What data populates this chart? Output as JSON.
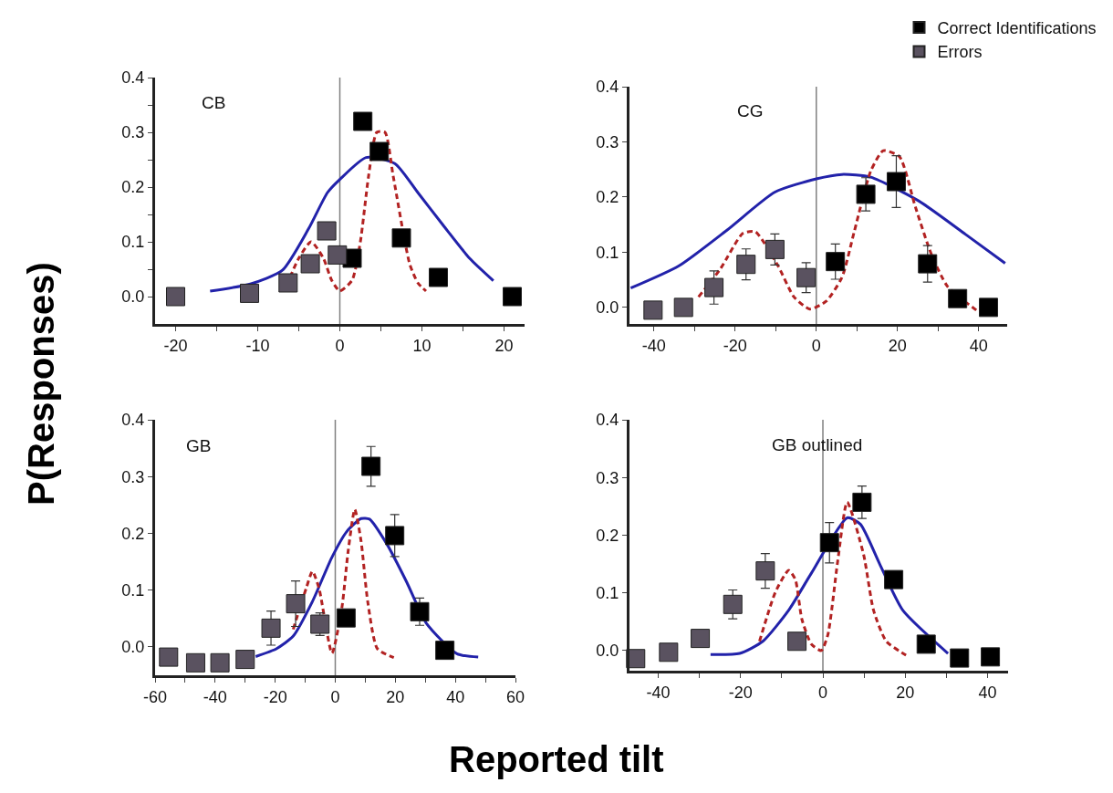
{
  "chart_data": [
    {
      "type": "scatter",
      "title": "CB",
      "ylabel": "P(Responses)",
      "xlim": [
        -22.5,
        22.5
      ],
      "ylim": [
        -0.05,
        0.4
      ],
      "xticks": [
        -20,
        {
          "value": -15,
          "label": null
        },
        -10,
        {
          "value": -5,
          "label": null
        },
        0,
        {
          "value": 5,
          "label": null
        },
        10,
        {
          "value": 15,
          "label": null
        },
        20
      ],
      "yticks": [
        {
          "value": 0,
          "label": "0.0"
        },
        {
          "value": 0.05,
          "label": null
        },
        0.1,
        {
          "value": 0.15,
          "label": null
        },
        0.2,
        {
          "value": 0.25,
          "label": null
        },
        0.3,
        {
          "value": 0.35,
          "label": null
        },
        0.4
      ],
      "marker": "square",
      "ref_lines": [
        {
          "axis": "x",
          "value": 0,
          "color": "#808080"
        }
      ],
      "series": [
        {
          "type": "line",
          "color": "#2222aa",
          "line_style": "solid",
          "marker": "none",
          "x": [
            -15.8,
            -10.9,
            -7,
            -3.8,
            -1.5,
            0,
            3.2,
            6.7,
            9.5,
            12.6,
            15.8,
            18.7
          ],
          "values": [
            0.01,
            0.023,
            0.048,
            0.124,
            0.19,
            0.214,
            0.254,
            0.243,
            0.19,
            0.13,
            0.07,
            0.029
          ]
        },
        {
          "type": "line",
          "color": "#b22222",
          "line_style": "dashed",
          "marker": "none",
          "x": [
            -6.5,
            -5,
            -3.5,
            -2,
            -1,
            0,
            1.5,
            2.5,
            3.5,
            4.5,
            5.5,
            6.5,
            8.5,
            9.5,
            10.5
          ],
          "values": [
            0.02,
            0.07,
            0.1,
            0.07,
            0.03,
            0.01,
            0.03,
            0.1,
            0.22,
            0.3,
            0.3,
            0.22,
            0.06,
            0.025,
            0.01
          ]
        },
        {
          "color": "#000000",
          "x": [
            1.5,
            2.8,
            4.8,
            7.5,
            12,
            21
          ],
          "values": [
            0.07,
            0.32,
            0.265,
            0.107,
            0.035,
            0.0
          ]
        },
        {
          "color": "#5a5260",
          "x": [
            -20,
            -11,
            -6.3,
            -3.6,
            -1.6,
            -0.3
          ],
          "values": [
            0.0,
            0.006,
            0.025,
            0.06,
            0.12,
            0.076
          ]
        }
      ]
    },
    {
      "type": "scatter",
      "title": "CG",
      "xlim": [
        -46,
        47
      ],
      "ylim": [
        -0.03,
        0.4
      ],
      "legend": "top right",
      "xticks": [
        -40,
        {
          "value": -30,
          "label": null
        },
        -20,
        {
          "value": -10,
          "label": null
        },
        0,
        {
          "value": 10,
          "label": null
        },
        20,
        {
          "value": 30,
          "label": null
        },
        40
      ],
      "yticks": [
        {
          "value": 0,
          "label": "0.0"
        },
        0.1,
        0.2,
        0.3,
        0.4
      ],
      "marker": "square",
      "ref_lines": [
        {
          "axis": "x",
          "value": 0,
          "color": "#808080"
        }
      ],
      "series": [
        {
          "type": "line",
          "color": "#2222aa",
          "line_style": "solid",
          "marker": "none",
          "x": [
            -45.7,
            -33.9,
            -22,
            -10.2,
            0,
            6.3,
            13.4,
            25.2,
            37,
            46.5
          ],
          "values": [
            0.035,
            0.075,
            0.14,
            0.209,
            0.233,
            0.241,
            0.236,
            0.193,
            0.131,
            0.08
          ]
        },
        {
          "type": "line",
          "color": "#b22222",
          "line_style": "dashed",
          "marker": "none",
          "x": [
            -29,
            -23.6,
            -18.1,
            -15,
            -9.4,
            -5.5,
            -1.6,
            2.4,
            6.3,
            9.4,
            13.4,
            16.5,
            20.5,
            24.4,
            28.3,
            32.3,
            39.4
          ],
          "values": [
            0.019,
            0.07,
            0.134,
            0.137,
            0.075,
            0.019,
            -0.003,
            0.011,
            0.054,
            0.139,
            0.247,
            0.284,
            0.273,
            0.182,
            0.097,
            0.038,
            -0.005
          ]
        },
        {
          "name": "Correct Identifications",
          "color": "#000000",
          "x": [
            4.7,
            12.2,
            19.7,
            27.4,
            34.8,
            42.4
          ],
          "values": [
            0.083,
            0.205,
            0.228,
            0.079,
            0.016,
            0.0
          ],
          "errors": [
            0.032,
            0.03,
            0.047,
            0.033,
            null,
            null
          ]
        },
        {
          "name": "Errors",
          "color": "#5a5260",
          "x": [
            -40.2,
            -32.7,
            -25.2,
            -17.3,
            -10.2,
            -2.5
          ],
          "values": [
            -0.005,
            0.0,
            0.036,
            0.078,
            0.105,
            0.054
          ],
          "errors": [
            null,
            null,
            0.03,
            0.028,
            0.028,
            0.027
          ]
        }
      ]
    },
    {
      "type": "scatter",
      "title": "GB",
      "xlabel": "Reported tilt",
      "xlim": [
        -60,
        60
      ],
      "ylim": [
        -0.05,
        0.4
      ],
      "xticks": [
        -60,
        {
          "value": -50,
          "label": null
        },
        -40,
        {
          "value": -30,
          "label": null
        },
        -20,
        {
          "value": -10,
          "label": null
        },
        0,
        {
          "value": 10,
          "label": null
        },
        20,
        {
          "value": 30,
          "label": null
        },
        40,
        {
          "value": 50,
          "label": null
        },
        60
      ],
      "yticks": [
        {
          "value": 0,
          "label": "0.0"
        },
        0.1,
        0.2,
        0.3,
        0.4
      ],
      "marker": "square",
      "ref_lines": [
        {
          "axis": "x",
          "value": 0,
          "color": "#808080"
        }
      ],
      "series": [
        {
          "type": "line",
          "color": "#2222aa",
          "line_style": "solid",
          "marker": "none",
          "x": [
            -26.5,
            -19.5,
            -14,
            -7.6,
            -1.1,
            3.8,
            8.6,
            11.4,
            17.3,
            23.8,
            30.3,
            40.5,
            47.6
          ],
          "values": [
            -0.017,
            -0.003,
            0.019,
            0.08,
            0.158,
            0.203,
            0.226,
            0.225,
            0.18,
            0.114,
            0.042,
            -0.012,
            -0.018
          ]
        },
        {
          "type": "line",
          "color": "#b22222",
          "line_style": "dashed",
          "marker": "none",
          "x": [
            -14,
            -9.7,
            -7.6,
            -5.4,
            -1.1,
            2.2,
            4.3,
            6.5,
            8.6,
            10.8,
            14,
            19.5
          ],
          "values": [
            0.031,
            0.103,
            0.133,
            0.103,
            -0.011,
            0.069,
            0.169,
            0.242,
            0.186,
            0.08,
            -0.003,
            -0.019
          ]
        },
        {
          "color": "#000000",
          "x": [
            3.6,
            11.9,
            19.8,
            28.1,
            36.5
          ],
          "values": [
            0.051,
            0.318,
            0.196,
            0.062,
            -0.006
          ],
          "errors": [
            null,
            0.035,
            0.037,
            0.024,
            null
          ]
        },
        {
          "color": "#5a5260",
          "x": [
            -55.5,
            -46.5,
            -38.4,
            -30,
            -21.4,
            -13.2,
            -5.1
          ],
          "values": [
            -0.018,
            -0.028,
            -0.028,
            -0.022,
            0.033,
            0.076,
            0.04
          ],
          "errors": [
            null,
            null,
            null,
            null,
            0.03,
            0.04,
            0.02
          ]
        }
      ]
    },
    {
      "type": "scatter",
      "title": "GB outlined",
      "xlim": [
        -47,
        45
      ],
      "ylim": [
        -0.035,
        0.4
      ],
      "xticks": [
        -40,
        {
          "value": -30,
          "label": null
        },
        -20,
        {
          "value": -10,
          "label": null
        },
        0,
        {
          "value": 10,
          "label": null
        },
        20,
        {
          "value": 30,
          "label": null
        },
        40
      ],
      "yticks": [
        {
          "value": 0,
          "label": "0.0"
        },
        0.1,
        0.2,
        0.3,
        0.4
      ],
      "marker": "square",
      "ref_lines": [
        {
          "axis": "x",
          "value": 0,
          "color": "#808080"
        }
      ],
      "series": [
        {
          "type": "line",
          "color": "#2222aa",
          "line_style": "solid",
          "marker": "none",
          "x": [
            -27.3,
            -20.2,
            -14.6,
            -8.3,
            -2.8,
            5.9,
            9.1,
            13.8,
            19.4,
            30.4
          ],
          "values": [
            -0.007,
            -0.005,
            0.016,
            0.07,
            0.134,
            0.23,
            0.219,
            0.15,
            0.07,
            -0.005
          ]
        },
        {
          "type": "line",
          "color": "#b22222",
          "line_style": "dashed",
          "marker": "none",
          "x": [
            -15.4,
            -11.5,
            -8.3,
            -6.7,
            -5.1,
            -2.8,
            -0.4,
            1.2,
            3.6,
            5.9,
            9.9,
            12.3,
            15.4,
            20.2
          ],
          "values": [
            0.016,
            0.102,
            0.139,
            0.123,
            0.054,
            0.011,
            0.0,
            0.027,
            0.155,
            0.257,
            0.166,
            0.07,
            0.016,
            -0.008
          ]
        },
        {
          "color": "#000000",
          "x": [
            1.6,
            9.5,
            17.2,
            25.1,
            33.2,
            40.7
          ],
          "values": [
            0.187,
            0.257,
            0.123,
            0.011,
            -0.013,
            -0.011
          ],
          "errors": [
            0.035,
            0.028,
            null,
            null,
            null,
            null
          ]
        },
        {
          "color": "#5a5260",
          "x": [
            -45.5,
            -37.5,
            -29.8,
            -21.9,
            -14,
            -6.3
          ],
          "values": [
            -0.014,
            -0.003,
            0.021,
            0.08,
            0.138,
            0.016
          ],
          "errors": [
            null,
            null,
            null,
            0.025,
            0.03,
            null
          ]
        }
      ]
    }
  ]
}
